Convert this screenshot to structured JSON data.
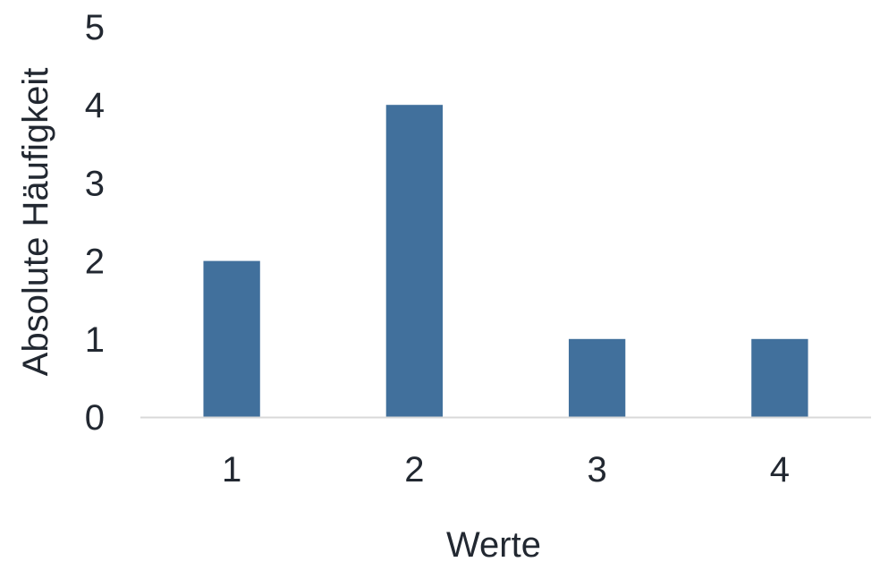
{
  "chart_data": {
    "type": "bar",
    "title": "",
    "xlabel": "Werte",
    "ylabel": "Absolute Häufigkeit",
    "categories": [
      "1",
      "2",
      "3",
      "4"
    ],
    "values": [
      2,
      4,
      1,
      1
    ],
    "ylim": [
      0,
      5
    ],
    "y_ticks": [
      "0",
      "1",
      "2",
      "3",
      "4",
      "5"
    ],
    "grid": false,
    "legend": "none",
    "colors": {
      "bar": "#41709c",
      "baseline": "#d9d9d9",
      "text": "#222831"
    }
  }
}
